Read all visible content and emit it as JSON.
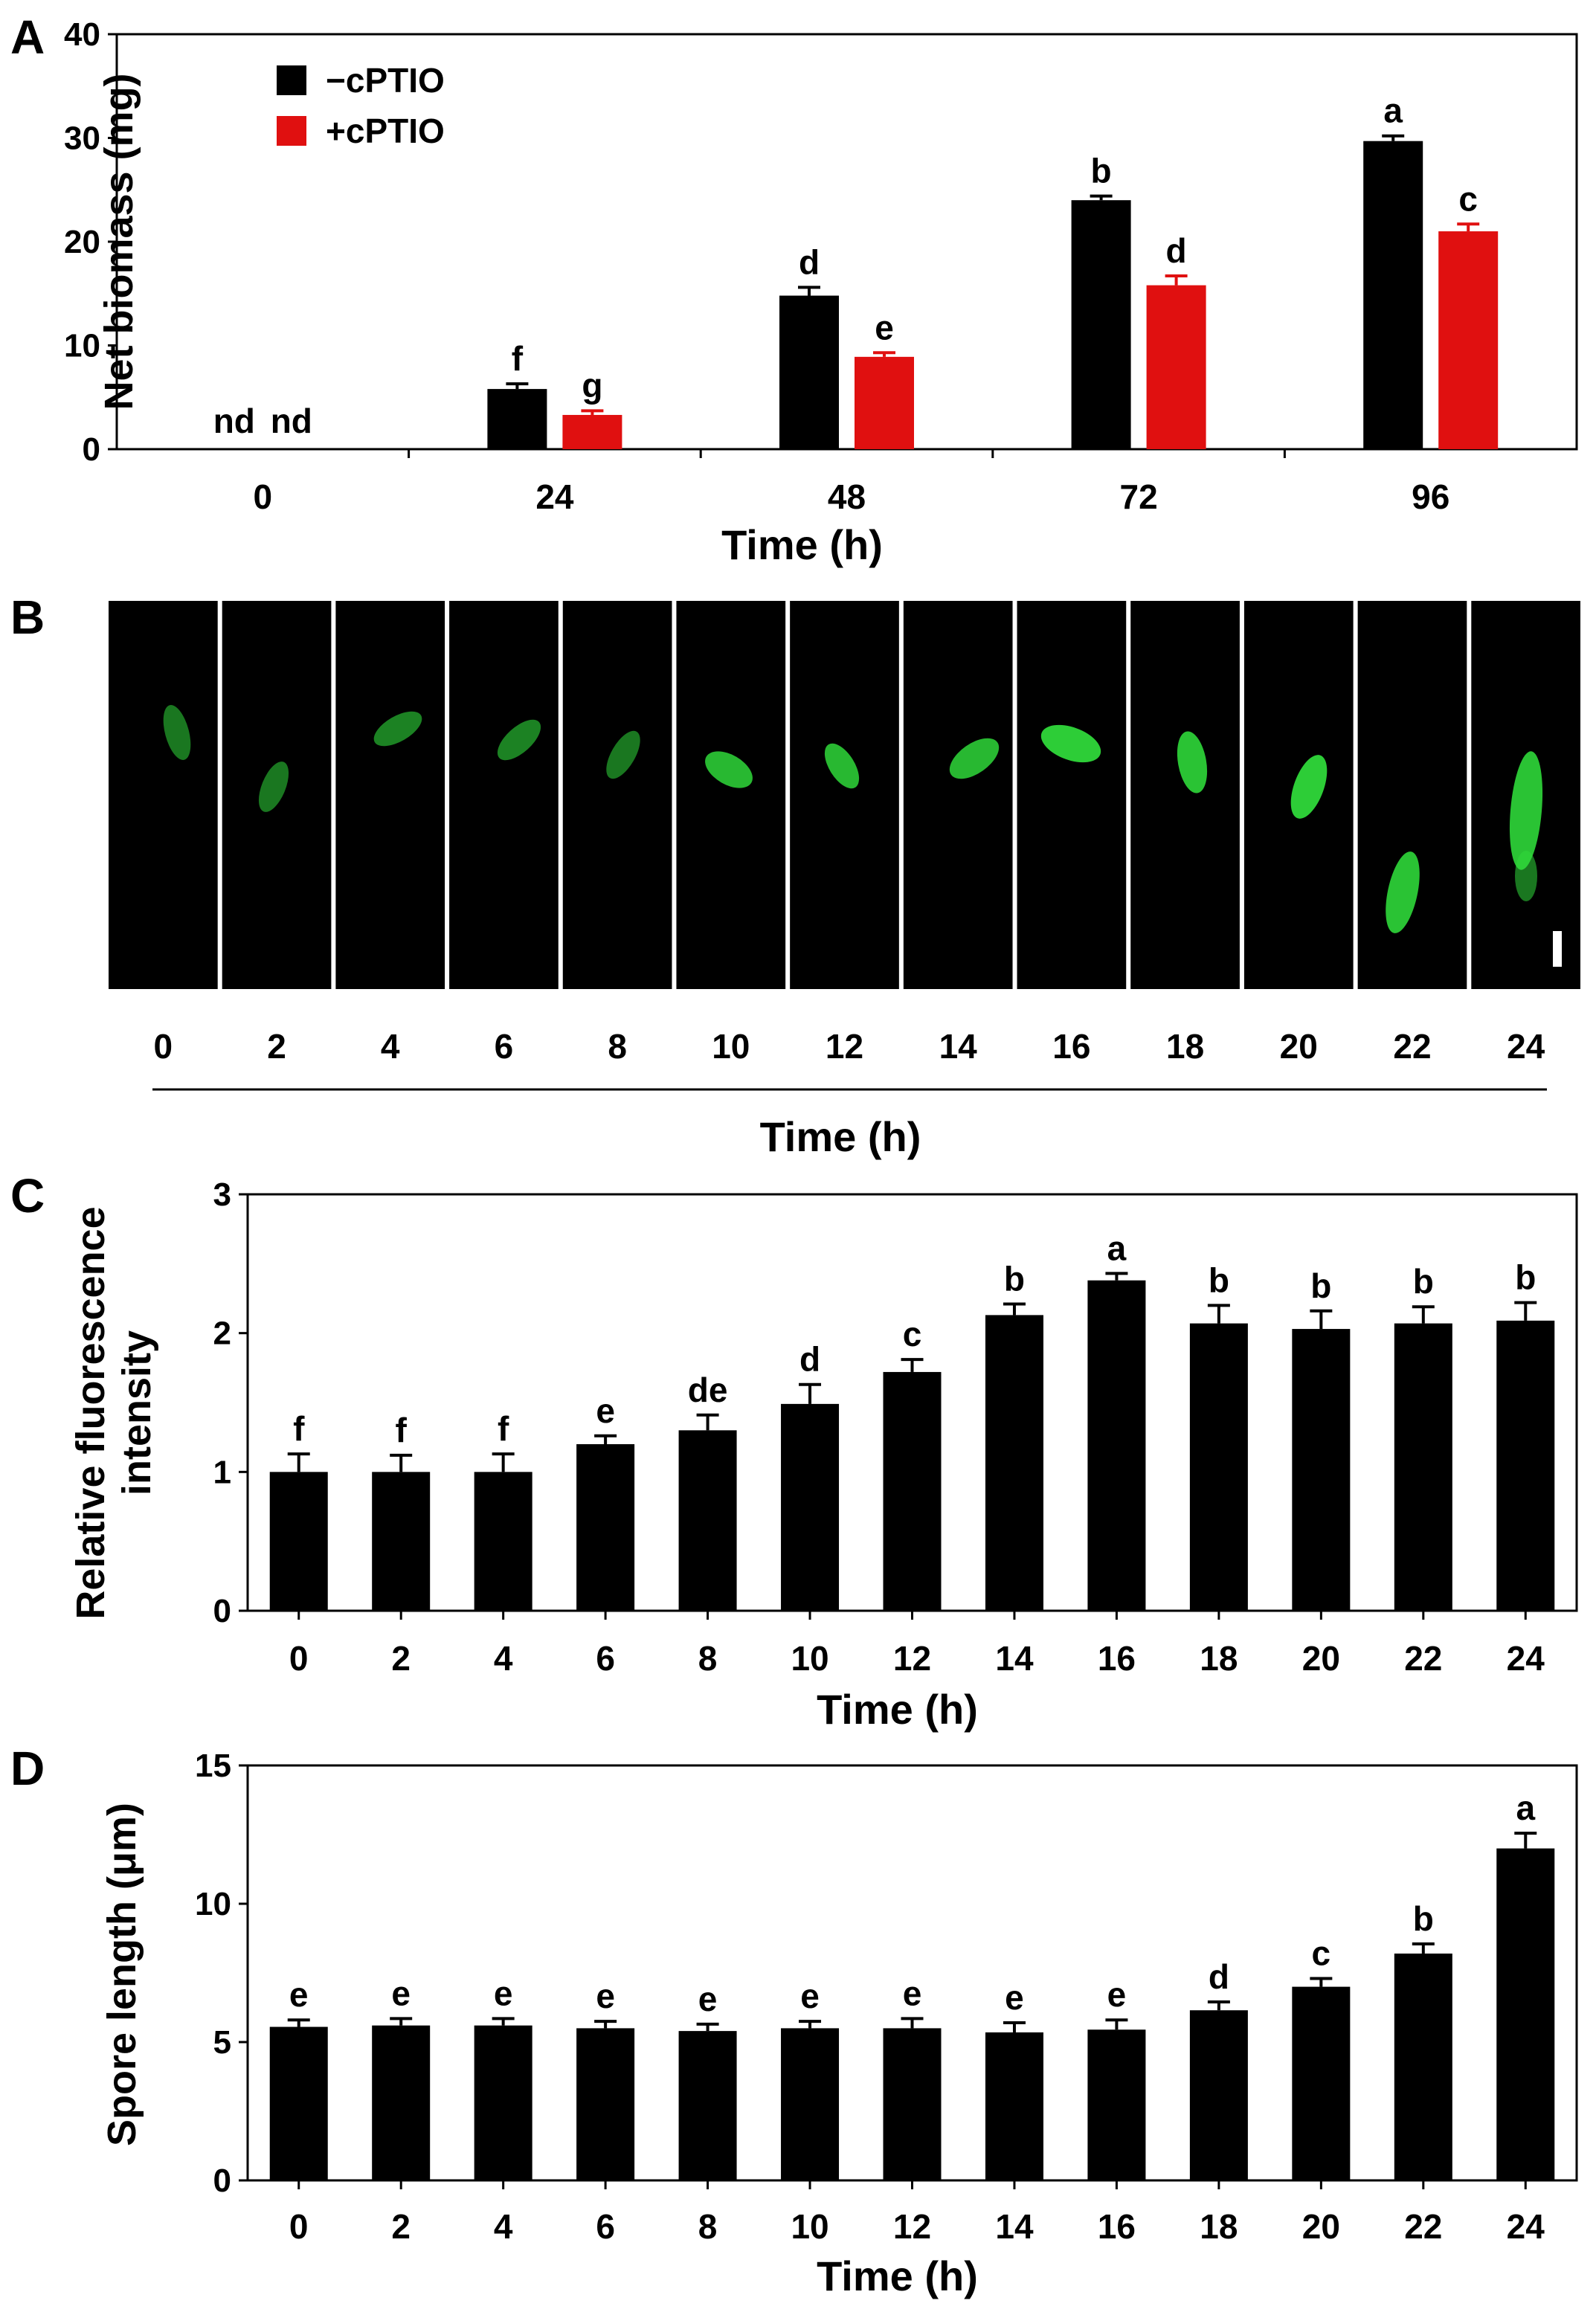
{
  "colors": {
    "neg": "#000000",
    "pos": "#e01010",
    "micro": "#2fd83a"
  },
  "panel_labels": [
    "A",
    "B",
    "C",
    "D"
  ],
  "panel_b": {
    "times": [
      "0",
      "2",
      "4",
      "6",
      "8",
      "10",
      "12",
      "14",
      "16",
      "18",
      "20",
      "22",
      "24"
    ],
    "xlabel": "Time (h)"
  },
  "chart_data": [
    {
      "type": "bar",
      "panel": "A",
      "title": "",
      "xlabel": "Time (h)",
      "ylabel": "Net biomass (mg)",
      "categories": [
        "0",
        "24",
        "48",
        "72",
        "96"
      ],
      "ylim": [
        0,
        40
      ],
      "yticks": [
        "0",
        "10",
        "20",
        "30",
        "40"
      ],
      "legend_position": "top-left",
      "series": [
        {
          "name": "−cPTIO",
          "color": "#000000",
          "values": [
            0,
            5.8,
            14.8,
            24.0,
            29.7
          ],
          "errors": [
            0,
            0.5,
            0.8,
            0.4,
            0.5
          ],
          "letters": [
            "nd",
            "f",
            "d",
            "b",
            "a"
          ]
        },
        {
          "name": "+cPTIO",
          "color": "#e01010",
          "values": [
            0,
            3.3,
            8.9,
            15.8,
            21.0
          ],
          "errors": [
            0,
            0.4,
            0.4,
            0.9,
            0.7
          ],
          "letters": [
            "nd",
            "g",
            "e",
            "d",
            "c"
          ]
        }
      ]
    },
    {
      "type": "bar",
      "panel": "C",
      "title": "",
      "xlabel": "Time (h)",
      "ylabel": "Relative fluorescence intensity",
      "ylabel_lines": [
        "Relative fluorescence",
        "intensity"
      ],
      "categories": [
        "0",
        "2",
        "4",
        "6",
        "8",
        "10",
        "12",
        "14",
        "16",
        "18",
        "20",
        "22",
        "24"
      ],
      "ylim": [
        0,
        3
      ],
      "yticks": [
        "0",
        "1",
        "2",
        "3"
      ],
      "values": [
        1.0,
        1.0,
        1.0,
        1.2,
        1.3,
        1.49,
        1.72,
        2.13,
        2.38,
        2.07,
        2.03,
        2.07,
        2.09
      ],
      "errors": [
        0.13,
        0.12,
        0.13,
        0.06,
        0.11,
        0.14,
        0.09,
        0.08,
        0.05,
        0.13,
        0.13,
        0.12,
        0.13
      ],
      "letters": [
        "f",
        "f",
        "f",
        "e",
        "de",
        "d",
        "c",
        "b",
        "a",
        "b",
        "b",
        "b",
        "b"
      ]
    },
    {
      "type": "bar",
      "panel": "D",
      "title": "",
      "xlabel": "Time (h)",
      "ylabel": "Spore length (μm)",
      "categories": [
        "0",
        "2",
        "4",
        "6",
        "8",
        "10",
        "12",
        "14",
        "16",
        "18",
        "20",
        "22",
        "24"
      ],
      "ylim": [
        0,
        15
      ],
      "yticks": [
        "0",
        "5",
        "10",
        "15"
      ],
      "values": [
        5.55,
        5.6,
        5.6,
        5.5,
        5.4,
        5.5,
        5.5,
        5.35,
        5.45,
        6.15,
        7.0,
        8.2,
        12.0
      ],
      "errors": [
        0.25,
        0.25,
        0.25,
        0.25,
        0.25,
        0.25,
        0.35,
        0.35,
        0.35,
        0.3,
        0.3,
        0.35,
        0.55
      ],
      "letters": [
        "e",
        "e",
        "e",
        "e",
        "e",
        "e",
        "e",
        "e",
        "e",
        "d",
        "c",
        "b",
        "a"
      ]
    }
  ]
}
